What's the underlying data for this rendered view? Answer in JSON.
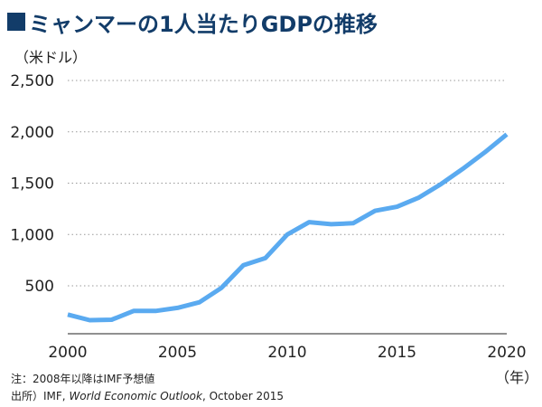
{
  "header": {
    "title": "ミャンマーの1人当たりGDPの推移"
  },
  "unit_label": "（米ドル）",
  "year_unit_label": "（年）",
  "notes": {
    "note": "注：2008年以降はIMF予想値",
    "source_prefix": "出所）IMF, ",
    "source_title": "World Economic Outlook",
    "source_suffix": ", October 2015"
  },
  "colors": {
    "title": "#123c69",
    "line": "#5aaaf0",
    "grid": "#999999",
    "axis": "#222222"
  },
  "chart_data": {
    "type": "line",
    "title": "ミャンマーの1人当たりGDPの推移",
    "xlabel": "（年）",
    "ylabel": "（米ドル）",
    "x": [
      2000,
      2001,
      2002,
      2003,
      2004,
      2005,
      2006,
      2007,
      2008,
      2009,
      2010,
      2011,
      2012,
      2013,
      2014,
      2015,
      2016,
      2017,
      2018,
      2019,
      2020
    ],
    "series": [
      {
        "values": [
          220,
          165,
          170,
          255,
          255,
          285,
          340,
          480,
          700,
          770,
          1000,
          1120,
          1100,
          1110,
          1230,
          1270,
          1360,
          1490,
          1640,
          1800,
          1975
        ]
      }
    ],
    "xlim": [
      2000,
      2020
    ],
    "ylim": [
      0,
      2500
    ],
    "yticks": [
      500,
      1000,
      1500,
      2000,
      2500
    ],
    "ytick_labels": [
      "500",
      "1,000",
      "1,500",
      "2,000",
      "2,500"
    ],
    "xticks": [
      2000,
      2005,
      2010,
      2015,
      2020
    ],
    "xtick_labels": [
      "2000",
      "2005",
      "2010",
      "2015",
      "2020"
    ],
    "grid": true,
    "grid_style": "dotted horizontal"
  }
}
